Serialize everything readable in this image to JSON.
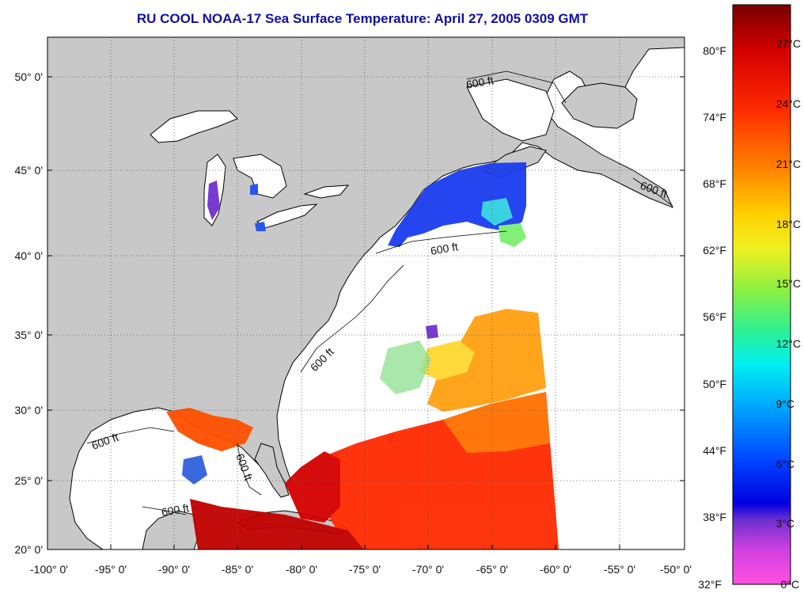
{
  "title": "RU COOL  NOAA-17  Sea Surface Temperature:  April 27, 2005 0309 GMT",
  "lat_labels": [
    "50° 0'",
    "45° 0'",
    "40° 0'",
    "35° 0'",
    "30° 0'",
    "25° 0'",
    "20° 0'"
  ],
  "lon_labels": [
    "-100° 0'",
    "-95° 0'",
    "-90° 0'",
    "-85° 0'",
    "-80° 0'",
    "-75° 0'",
    "-70° 0'",
    "-65° 0'",
    "-60° 0'",
    "-55° 0'",
    "-50° 0'"
  ],
  "colorbar": {
    "fahrenheit_labels": [
      "80°F",
      "74°F",
      "68°F",
      "62°F",
      "56°F",
      "50°F",
      "44°F",
      "38°F",
      "32°F"
    ],
    "celsius_labels": [
      "27°C",
      "24°C",
      "21°C",
      "18°C",
      "15°C",
      "12°C",
      "9°C",
      "6°C",
      "3°C",
      "0°C"
    ],
    "colors": [
      "#7a0000",
      "#d40000",
      "#ff2a00",
      "#ff7a00",
      "#ffb000",
      "#ffe000",
      "#c8f020",
      "#70e060",
      "#20e0a0",
      "#00e8e8",
      "#00a8ff",
      "#0050ff",
      "#0000e0",
      "#4020d0",
      "#9020d0",
      "#ff40d0",
      "#ff60e0"
    ]
  },
  "contour_labels": [
    "600 ft",
    "600 ft",
    "600 ft",
    "600 ft",
    "600 ft",
    "600 ft",
    "600 ft"
  ],
  "colors": {
    "land": "#c8c8c8",
    "ocean": "#ffffff",
    "title": "#1010a0",
    "grid": "#555555"
  }
}
